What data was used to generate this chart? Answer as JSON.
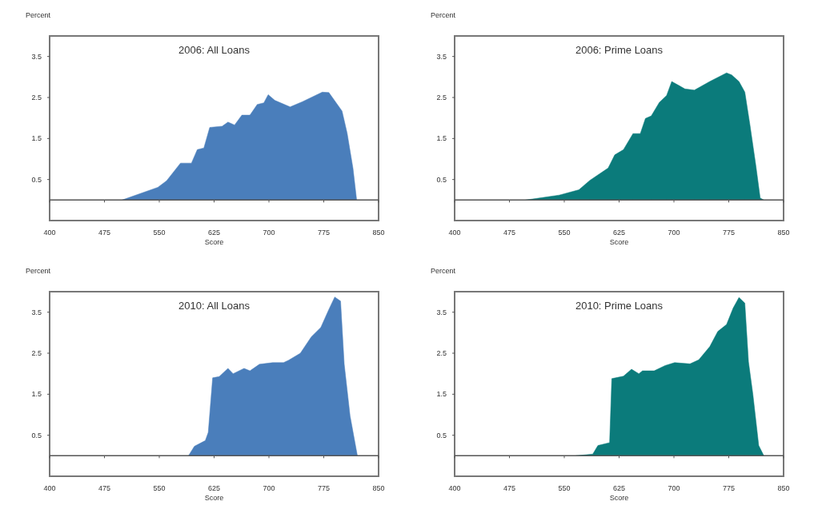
{
  "chart_data": [
    {
      "type": "area",
      "title": "2006:  All Loans",
      "xlabel": "Score",
      "ylabel": "Percent",
      "color": "#4a7ebb",
      "xlim": [
        400,
        850
      ],
      "xticks": [
        400,
        475,
        550,
        625,
        700,
        775,
        850
      ],
      "ylim": [
        -0.5,
        4
      ],
      "yticks": [
        0.5,
        1.5,
        2.5,
        3.5
      ],
      "x": [
        499,
        548,
        560,
        579,
        594,
        602,
        611,
        619,
        636,
        644,
        653,
        663,
        674,
        684,
        693,
        699,
        708,
        729,
        746,
        773,
        782,
        800,
        807,
        815,
        820
      ],
      "values": [
        0,
        0.31,
        0.47,
        0.9,
        0.9,
        1.23,
        1.27,
        1.77,
        1.8,
        1.9,
        1.83,
        2.07,
        2.07,
        2.33,
        2.37,
        2.57,
        2.43,
        2.27,
        2.4,
        2.63,
        2.62,
        2.17,
        1.63,
        0.77,
        0
      ]
    },
    {
      "type": "area",
      "title": "2006:  Prime Loans",
      "xlabel": "Score",
      "ylabel": "Percent",
      "color": "#0b7b7b",
      "xlim": [
        400,
        850
      ],
      "xticks": [
        400,
        475,
        550,
        625,
        700,
        775,
        850
      ],
      "ylim": [
        -0.5,
        4
      ],
      "yticks": [
        0.5,
        1.5,
        2.5,
        3.5
      ],
      "x": [
        497,
        543,
        570,
        585,
        610,
        619,
        631,
        644,
        654,
        661,
        669,
        680,
        690,
        697,
        707,
        715,
        728,
        749,
        772,
        779,
        789,
        797,
        804,
        812,
        818,
        823
      ],
      "values": [
        0,
        0.12,
        0.25,
        0.48,
        0.78,
        1.1,
        1.23,
        1.62,
        1.62,
        1.99,
        2.05,
        2.38,
        2.55,
        2.89,
        2.79,
        2.71,
        2.68,
        2.89,
        3.1,
        3.05,
        2.89,
        2.63,
        1.83,
        0.85,
        0.05,
        0
      ]
    },
    {
      "type": "area",
      "title": "2010:  All Loans",
      "xlabel": "Score",
      "ylabel": "Percent",
      "color": "#4a7ebb",
      "xlim": [
        400,
        850
      ],
      "xticks": [
        400,
        475,
        550,
        625,
        700,
        775,
        850
      ],
      "ylim": [
        -0.5,
        4
      ],
      "yticks": [
        0.5,
        1.5,
        2.5,
        3.5
      ],
      "x": [
        590,
        598,
        613,
        617,
        623,
        632,
        644,
        651,
        666,
        674,
        687,
        705,
        720,
        727,
        743,
        758,
        771,
        781,
        790,
        798,
        803,
        811,
        821
      ],
      "values": [
        0,
        0.23,
        0.37,
        0.57,
        1.9,
        1.93,
        2.13,
        2,
        2.13,
        2.07,
        2.23,
        2.27,
        2.27,
        2.33,
        2.5,
        2.9,
        3.13,
        3.53,
        3.87,
        3.77,
        2.23,
        0.97,
        0
      ]
    },
    {
      "type": "area",
      "title": "2010:  Prime Loans",
      "xlabel": "Score",
      "ylabel": "Percent",
      "color": "#0b7b7b",
      "xlim": [
        400,
        850
      ],
      "xticks": [
        400,
        475,
        550,
        625,
        700,
        775,
        850
      ],
      "ylim": [
        -0.5,
        4
      ],
      "yticks": [
        0.5,
        1.5,
        2.5,
        3.5
      ],
      "x": [
        566,
        589,
        596,
        612,
        615,
        631,
        642,
        652,
        657,
        673,
        688,
        701,
        722,
        734,
        749,
        760,
        772,
        781,
        789,
        797,
        802,
        808,
        816,
        823
      ],
      "values": [
        0,
        0.04,
        0.25,
        0.32,
        1.88,
        1.94,
        2.11,
        2,
        2.07,
        2.07,
        2.2,
        2.27,
        2.24,
        2.34,
        2.66,
        3.03,
        3.2,
        3.6,
        3.86,
        3.72,
        2.29,
        1.5,
        0.25,
        0
      ]
    }
  ]
}
